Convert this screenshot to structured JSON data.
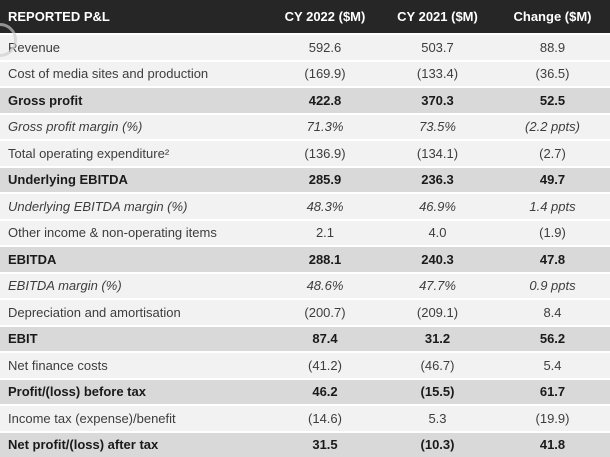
{
  "colors": {
    "header_bg": "#262626",
    "header_text": "#ffffff",
    "row_bg": "#f2f2f2",
    "total_row_bg": "#d9d9d9",
    "divider": "#ffffff",
    "body_text": "#3d3d3d",
    "total_text": "#1a1a1a"
  },
  "chart_data": {
    "type": "table",
    "title": "REPORTED P&L",
    "columns": [
      "CY 2022 ($M)",
      "CY 2021 ($M)",
      "Change ($M)"
    ],
    "rows": [
      {
        "label": "Revenue",
        "cy2022": "592.6",
        "cy2021": "503.7",
        "change": "88.9",
        "style": "normal"
      },
      {
        "label": "Cost of media sites and production",
        "cy2022": "(169.9)",
        "cy2021": "(133.4)",
        "change": "(36.5)",
        "style": "normal"
      },
      {
        "label": "Gross profit",
        "cy2022": "422.8",
        "cy2021": "370.3",
        "change": "52.5",
        "style": "total"
      },
      {
        "label": "Gross profit margin (%)",
        "cy2022": "71.3%",
        "cy2021": "73.5%",
        "change": "(2.2 ppts)",
        "style": "margin"
      },
      {
        "label": "Total operating expenditure²",
        "cy2022": "(136.9)",
        "cy2021": "(134.1)",
        "change": "(2.7)",
        "style": "normal"
      },
      {
        "label": "Underlying EBITDA",
        "cy2022": "285.9",
        "cy2021": "236.3",
        "change": "49.7",
        "style": "total"
      },
      {
        "label": "Underlying EBITDA margin (%)",
        "cy2022": "48.3%",
        "cy2021": "46.9%",
        "change": "1.4 ppts",
        "style": "margin"
      },
      {
        "label": "Other income & non-operating items",
        "cy2022": "2.1",
        "cy2021": "4.0",
        "change": "(1.9)",
        "style": "normal"
      },
      {
        "label": "EBITDA",
        "cy2022": "288.1",
        "cy2021": "240.3",
        "change": "47.8",
        "style": "total"
      },
      {
        "label": "EBITDA margin (%)",
        "cy2022": "48.6%",
        "cy2021": "47.7%",
        "change": "0.9 ppts",
        "style": "margin"
      },
      {
        "label": "Depreciation and amortisation",
        "cy2022": "(200.7)",
        "cy2021": "(209.1)",
        "change": "8.4",
        "style": "normal"
      },
      {
        "label": "EBIT",
        "cy2022": "87.4",
        "cy2021": "31.2",
        "change": "56.2",
        "style": "total"
      },
      {
        "label": "Net finance costs",
        "cy2022": "(41.2)",
        "cy2021": "(46.7)",
        "change": "5.4",
        "style": "normal"
      },
      {
        "label": "Profit/(loss) before tax",
        "cy2022": "46.2",
        "cy2021": "(15.5)",
        "change": "61.7",
        "style": "total"
      },
      {
        "label": "Income tax (expense)/benefit",
        "cy2022": "(14.6)",
        "cy2021": "5.3",
        "change": "(19.9)",
        "style": "normal"
      },
      {
        "label": "Net profit/(loss) after tax",
        "cy2022": "31.5",
        "cy2021": "(10.3)",
        "change": "41.8",
        "style": "total"
      }
    ]
  }
}
